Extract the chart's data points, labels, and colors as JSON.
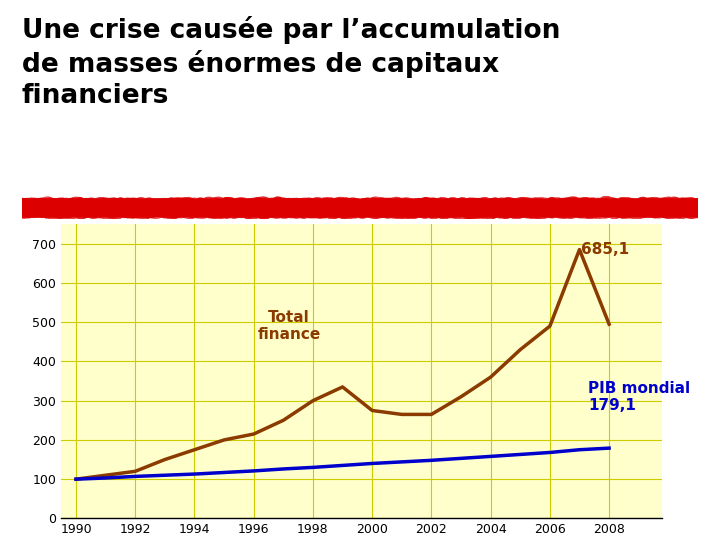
{
  "title_line1": "Une crise causée par l’accumulation",
  "title_line2": "de masses énormes de capitaux",
  "title_line3": "financiers",
  "title_color": "#000000",
  "title_fontsize": 19,
  "title_fontweight": "bold",
  "background_color": "#ffffff",
  "plot_bg_color": "#ffffcc",
  "grid_color": "#cccc00",
  "red_bar_color": "#dd0000",
  "years": [
    1990,
    1991,
    1992,
    1993,
    1994,
    1995,
    1996,
    1997,
    1998,
    1999,
    2000,
    2001,
    2002,
    2003,
    2004,
    2005,
    2006,
    2007,
    2008
  ],
  "finance": [
    100,
    110,
    120,
    150,
    175,
    200,
    215,
    250,
    300,
    335,
    275,
    265,
    265,
    310,
    360,
    430,
    490,
    685.1,
    495
  ],
  "pib": [
    100,
    103,
    107,
    110,
    113,
    117,
    121,
    126,
    130,
    135,
    140,
    144,
    148,
    153,
    158,
    163,
    168,
    175,
    179.1
  ],
  "finance_color": "#8B3A00",
  "pib_color": "#0000cc",
  "finance_label": "Total\nfinance",
  "pib_label": "PIB mondial\n179,1",
  "finance_peak_label": "685,1",
  "ylim": [
    0,
    750
  ],
  "xlim": [
    1989.5,
    2009.8
  ],
  "yticks": [
    0,
    100,
    200,
    300,
    400,
    500,
    600,
    700
  ],
  "xticks": [
    1990,
    1992,
    1994,
    1996,
    1998,
    2000,
    2002,
    2004,
    2006,
    2008
  ],
  "linewidth": 2.5
}
